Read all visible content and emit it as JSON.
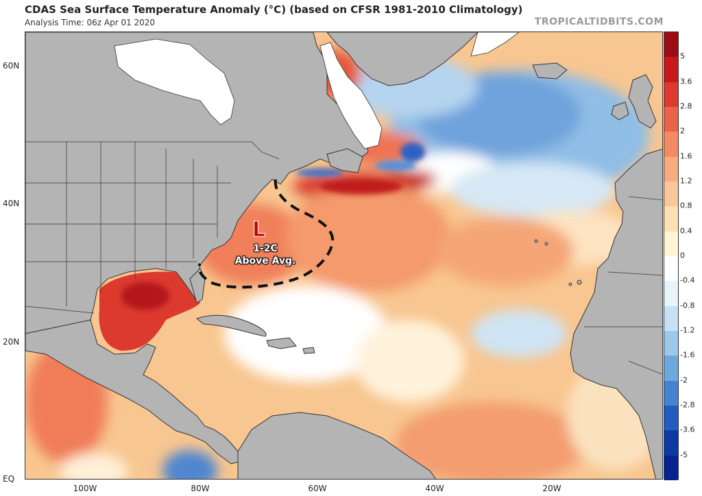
{
  "header": {
    "title": "CDAS Sea Surface Temperature Anomaly (°C) (based on CFSR 1981-2010 Climatology)",
    "analysis_time": "Analysis Time: 06z Apr 01 2020",
    "credit": "TROPICALTIDBITS.COM"
  },
  "axes": {
    "lat_labels": [
      "60N",
      "40N",
      "20N",
      "EQ"
    ],
    "lon_labels": [
      "100W",
      "80W",
      "60W",
      "40W",
      "20W"
    ]
  },
  "colorbar": {
    "ticks": [
      "5",
      "3.6",
      "2.8",
      "2",
      "1.6",
      "1.2",
      "0.8",
      "0.4",
      "0",
      "-0.4",
      "-0.8",
      "-1.2",
      "-1.6",
      "-2",
      "-2.8",
      "-3.6",
      "-5"
    ],
    "colors": [
      "#9b0d12",
      "#c8181c",
      "#dc3a2e",
      "#ea6348",
      "#f38a62",
      "#f7ab7e",
      "#fac79a",
      "#fde0b6",
      "#fff6d6",
      "#ffffff",
      "#e8f3fa",
      "#c6e1f3",
      "#9cc8ea",
      "#6fa8dd",
      "#4683cf",
      "#225cbd",
      "#0b3aa5",
      "#062390"
    ]
  },
  "annotation": {
    "marker": "L",
    "line1": "1-2C",
    "line2": "Above Avg."
  },
  "map_colors": {
    "land": "#b4b4b4",
    "ice": "#ffffff",
    "ocean_base": "#f8c690"
  }
}
